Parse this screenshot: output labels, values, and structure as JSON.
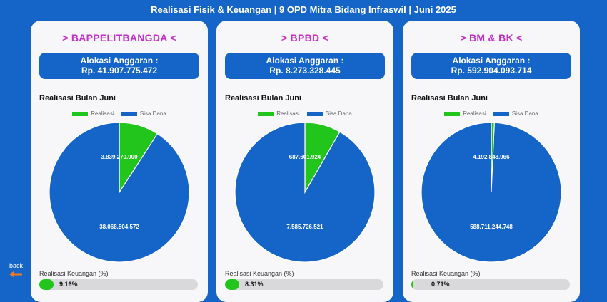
{
  "header": {
    "title": "Realisasi Fisik & Keuangan | 9 OPD Mitra Bidang Infraswil | Juni 2025"
  },
  "nav": {
    "back_label": "back",
    "back_icon": "arrow-left-icon"
  },
  "colors": {
    "realisasi": "#22c51c",
    "sisa_dana": "#1565c9",
    "card_title": "#c42fc7"
  },
  "cards": [
    {
      "name": "> BAPPELITBANGDA <",
      "budget_label": "Alokasi Anggaran :",
      "budget_value": "Rp. 41.907.775.472",
      "chart_title": "Realisasi Bulan Juni",
      "legend": [
        "Realisasi",
        "Sisa Dana"
      ],
      "realisasi_label": "3.839.270.900",
      "sisa_label": "38.068.504.572",
      "progress_label": "Realisasi Keuangan (%)",
      "progress_text": "9.16%",
      "progress_pct": 9.16
    },
    {
      "name": "> BPBD <",
      "budget_label": "Alokasi Anggaran :",
      "budget_value": "Rp. 8.273.328.445",
      "chart_title": "Realisasi Bulan Juni",
      "legend": [
        "Realisasi",
        "Sisa Dana"
      ],
      "realisasi_label": "687.601.924",
      "sisa_label": "7.585.726.521",
      "progress_label": "Realisasi Keuangan (%)",
      "progress_text": "8.31%",
      "progress_pct": 8.31
    },
    {
      "name": "> BM & BK <",
      "budget_label": "Alokasi Anggaran :",
      "budget_value": "Rp. 592.904.093.714",
      "chart_title": "Realisasi Bulan Juni",
      "legend": [
        "Realisasi",
        "Sisa Dana"
      ],
      "realisasi_label": "4.192.848.966",
      "sisa_label": "588.711.244.748",
      "progress_label": "Realisasi Keuangan (%)",
      "progress_text": "0.71%",
      "progress_pct": 0.71
    }
  ],
  "chart_data": [
    {
      "type": "pie",
      "title": "Realisasi Bulan Juni",
      "labels": [
        "Realisasi",
        "Sisa Dana"
      ],
      "values": [
        3839270900,
        38068504572
      ]
    },
    {
      "type": "pie",
      "title": "Realisasi Bulan Juni",
      "labels": [
        "Realisasi",
        "Sisa Dana"
      ],
      "values": [
        687601924,
        7585726521
      ]
    },
    {
      "type": "pie",
      "title": "Realisasi Bulan Juni",
      "labels": [
        "Realisasi",
        "Sisa Dana"
      ],
      "values": [
        4192848966,
        588711244748
      ]
    }
  ]
}
